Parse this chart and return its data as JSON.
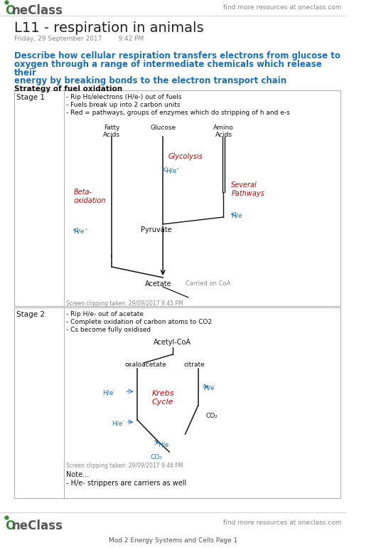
{
  "bg_color": "#ffffff",
  "header_right": "find more resources at oneclass.com",
  "title": "L11 - respiration in animals",
  "date": "Friday, 29 September 2017        9:42 PM",
  "blue_line1": "Describe how cellular respiration transfers electrons from glucose to",
  "blue_line2": "oxygen through a range of intermediate chemicals which release",
  "blue_line3": "their",
  "blue_line4": "energy by breaking bonds to the electron transport chain",
  "bold_subheading": "Strategy of fuel oxidation",
  "stage1_label": "Stage 1",
  "stage1_b1": "- Rip Hs/electrons (H/e-) out of fuels",
  "stage1_b2": "- Fuels break up into 2 carbon units",
  "stage1_b3": "- Red = pathways, groups of enzymes which do stripping of h and e-s",
  "stage2_label": "Stage 2",
  "stage2_b1": "- Rip H/e- out of acetate",
  "stage2_b2": "- Complete oxidation of carbon atoms to CO2",
  "stage2_b3": "- Cs become fully oxidised",
  "footer_right": "find more resources at oneclass.com",
  "footer_bottom": "Mod 2 Energy Systems and Cells Page 1",
  "note_text1": "Note...",
  "note_text2": "- H/e- strippers are carriers as well",
  "screen_clip1": "Screen clipping taken: 29/09/2017 9:45 PM",
  "screen_clip2": "Screen clipping taken: 29/09/2017 9:46 PM",
  "blue_color": "#1a6fb5",
  "red_color": "#cc0000",
  "text_color": "#333333",
  "gray_color": "#888888",
  "green_color": "#3a8a3a"
}
